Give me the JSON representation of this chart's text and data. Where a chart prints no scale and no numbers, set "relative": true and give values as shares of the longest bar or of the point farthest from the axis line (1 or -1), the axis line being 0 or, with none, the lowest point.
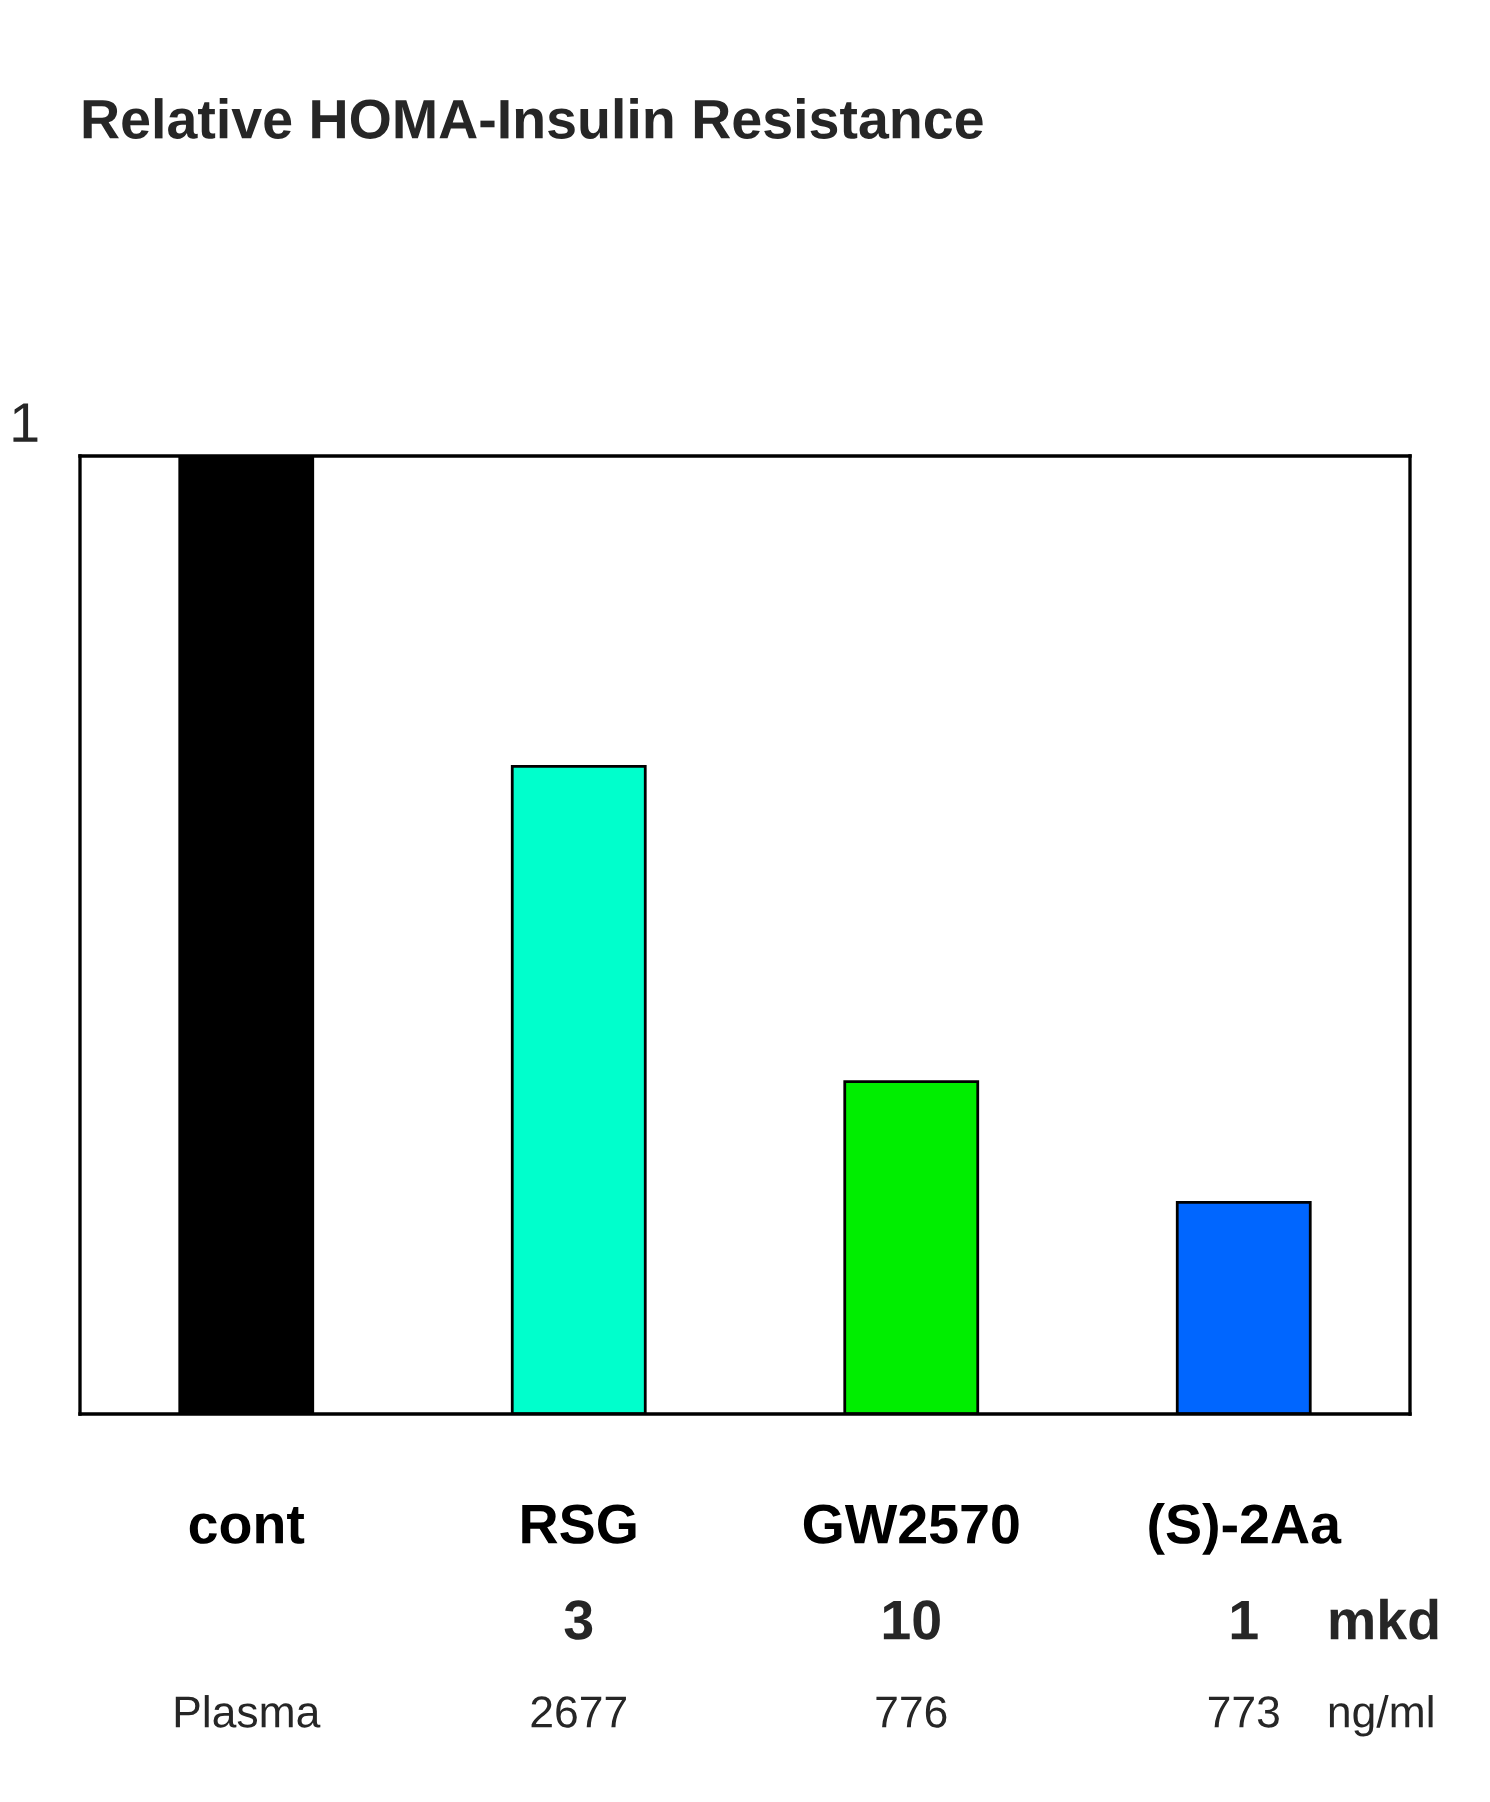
{
  "chart_data": {
    "type": "bar",
    "title": "Relative HOMA-Insulin Resistance",
    "categories": [
      "cont",
      "RSG",
      "GW2570",
      "(S)-2Aa"
    ],
    "values": [
      1,
      0.676,
      0.347,
      0.221
    ],
    "colors": [
      "#000000",
      "#00ffcc",
      "#00ee00",
      "#0066ff"
    ],
    "relative": true,
    "annotations": [
      "1",
      "3",
      "10",
      "1",
      "mkd",
      "Plasma",
      "2677",
      "776",
      "773",
      "ng/ml"
    ],
    "grid": false,
    "legend": false
  }
}
